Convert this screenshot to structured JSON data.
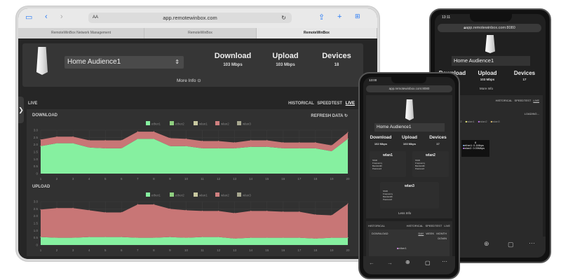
{
  "tablet": {
    "url": "app.remotewinbox.com",
    "reader_label": "AA",
    "tabs": [
      "RemoteWinBox Network Management",
      "RemoteWinBox",
      "RemoteWinBox"
    ],
    "site_selector": "Home Audience1",
    "stats": [
      {
        "label": "Download",
        "value": "103 Mbps"
      },
      {
        "label": "Upload",
        "value": "103 Mbps"
      },
      {
        "label": "Devices",
        "value": "18"
      }
    ],
    "more_info": "More Info",
    "section_label": "LIVE",
    "nav": [
      "HISTORICAL",
      "SPEEDTEST",
      "LIVE"
    ],
    "refresh": "REFRESH DATA"
  },
  "chart_data": [
    {
      "type": "area",
      "title": "DOWNLOAD",
      "stacked": true,
      "ylim": [
        0,
        3
      ],
      "yticks": [
        "0",
        "0.5",
        "1.0",
        "1.5",
        "2.0",
        "2.5",
        "3.0"
      ],
      "x": [
        1,
        2,
        3,
        4,
        5,
        6,
        7,
        8,
        9,
        10,
        11,
        12,
        13,
        14,
        15,
        16,
        17,
        18,
        19,
        20
      ],
      "grid": true,
      "legend": "top-center",
      "legend_entries": [
        {
          "name": "ether1",
          "color": "#86f0a0"
        },
        {
          "name": "ether2",
          "color": "#8fcf80"
        },
        {
          "name": "wlan1",
          "color": "#c8c8a0"
        },
        {
          "name": "wlan2",
          "color": "#d08080"
        },
        {
          "name": "wlan3",
          "color": "#a8a890"
        }
      ],
      "series": [
        {
          "name": "ether1",
          "color": "#86f0a0",
          "values": [
            1.9,
            2.1,
            2.1,
            1.8,
            1.75,
            1.75,
            2.4,
            2.4,
            1.9,
            1.9,
            1.75,
            1.75,
            1.75,
            1.85,
            1.85,
            1.75,
            1.75,
            1.75,
            1.55,
            2.4
          ]
        },
        {
          "name": "wlan2",
          "color": "#c87676",
          "values": [
            0.45,
            0.45,
            0.45,
            0.5,
            0.55,
            0.55,
            0.5,
            0.5,
            0.55,
            0.5,
            0.5,
            0.5,
            0.4,
            0.45,
            0.45,
            0.4,
            0.4,
            0.4,
            0.4,
            0.45
          ]
        }
      ]
    },
    {
      "type": "area",
      "title": "UPLOAD",
      "stacked": true,
      "ylim": [
        0,
        3
      ],
      "yticks": [
        "0",
        "0.5",
        "1.0",
        "1.5",
        "2.0",
        "2.5",
        "3.0"
      ],
      "x": [
        1,
        2,
        3,
        4,
        5,
        6,
        7,
        8,
        9,
        10,
        11,
        12,
        13,
        14,
        15,
        16,
        17,
        18,
        19,
        20
      ],
      "grid": true,
      "legend": "top-center",
      "legend_entries": [
        {
          "name": "ether1",
          "color": "#86f0a0"
        },
        {
          "name": "ether2",
          "color": "#8fcf80"
        },
        {
          "name": "wlan1",
          "color": "#c8c8a0"
        },
        {
          "name": "wlan2",
          "color": "#d08080"
        },
        {
          "name": "wlan3",
          "color": "#a8a890"
        }
      ],
      "series": [
        {
          "name": "ether1",
          "color": "#86f0a0",
          "values": [
            0.55,
            0.5,
            0.5,
            0.55,
            0.55,
            0.55,
            0.5,
            0.5,
            0.55,
            0.5,
            0.55,
            0.55,
            0.45,
            0.5,
            0.5,
            0.5,
            0.5,
            0.45,
            0.5,
            0.5
          ]
        },
        {
          "name": "wlan2",
          "color": "#c87676",
          "values": [
            1.9,
            2.05,
            2.05,
            1.85,
            1.7,
            1.7,
            2.3,
            2.3,
            1.95,
            1.9,
            1.8,
            1.8,
            1.75,
            1.85,
            1.85,
            1.8,
            1.8,
            1.65,
            1.55,
            2.35
          ]
        }
      ]
    }
  ],
  "phone_front": {
    "time": "13:00",
    "url": "app.remotewinbox.com:8080",
    "site_selector": "Home Audience1",
    "stats": [
      {
        "label": "Download",
        "value": "102 Mbps"
      },
      {
        "label": "Upload",
        "value": "103 Mbps"
      },
      {
        "label": "Devices",
        "value": "17"
      }
    ],
    "wlans": [
      {
        "name": "wlan1",
        "rows": [
          "SSID",
          "Frequency",
          "Bandwidth",
          "Password"
        ]
      },
      {
        "name": "wlan2",
        "rows": [
          "SSID",
          "Frequency",
          "Bandwidth",
          "Password"
        ]
      },
      {
        "name": "wlan3",
        "rows": [
          "SSID",
          "Frequency",
          "Bandwidth",
          "Password"
        ]
      }
    ],
    "less_info": "Less Info",
    "section_label": "HISTORICAL",
    "nav": [
      "HISTORICAL",
      "SPEEDTEST",
      "LIVE"
    ],
    "download": "DOWNLOAD",
    "periods": [
      "DAY",
      "WEEK",
      "MONTH"
    ],
    "down": "DOWN",
    "legend": "ether1"
  },
  "phone_back": {
    "time": "13:11",
    "url": "app.remotewinbox.com:8080",
    "site_selector": "Home Audience1",
    "stats": [
      {
        "label": "Download",
        "value": "103 Mbps"
      },
      {
        "label": "Upload",
        "value": "103 Mbps"
      },
      {
        "label": "Devices",
        "value": "17"
      }
    ],
    "more_info": "More Info",
    "nav": [
      "HISTORICAL",
      "SPEEDTEST",
      "LIVE"
    ],
    "download": "LOAD",
    "loading": "LOADING...",
    "legend": [
      "ether1",
      "ether2",
      "wlan1",
      "wlan2",
      "wlan3"
    ],
    "tooltip": {
      "title": "8",
      "rows": [
        "ether1: 0.1Mbps",
        "wlan2: 0.05Mbps"
      ]
    },
    "upload": "AD"
  }
}
